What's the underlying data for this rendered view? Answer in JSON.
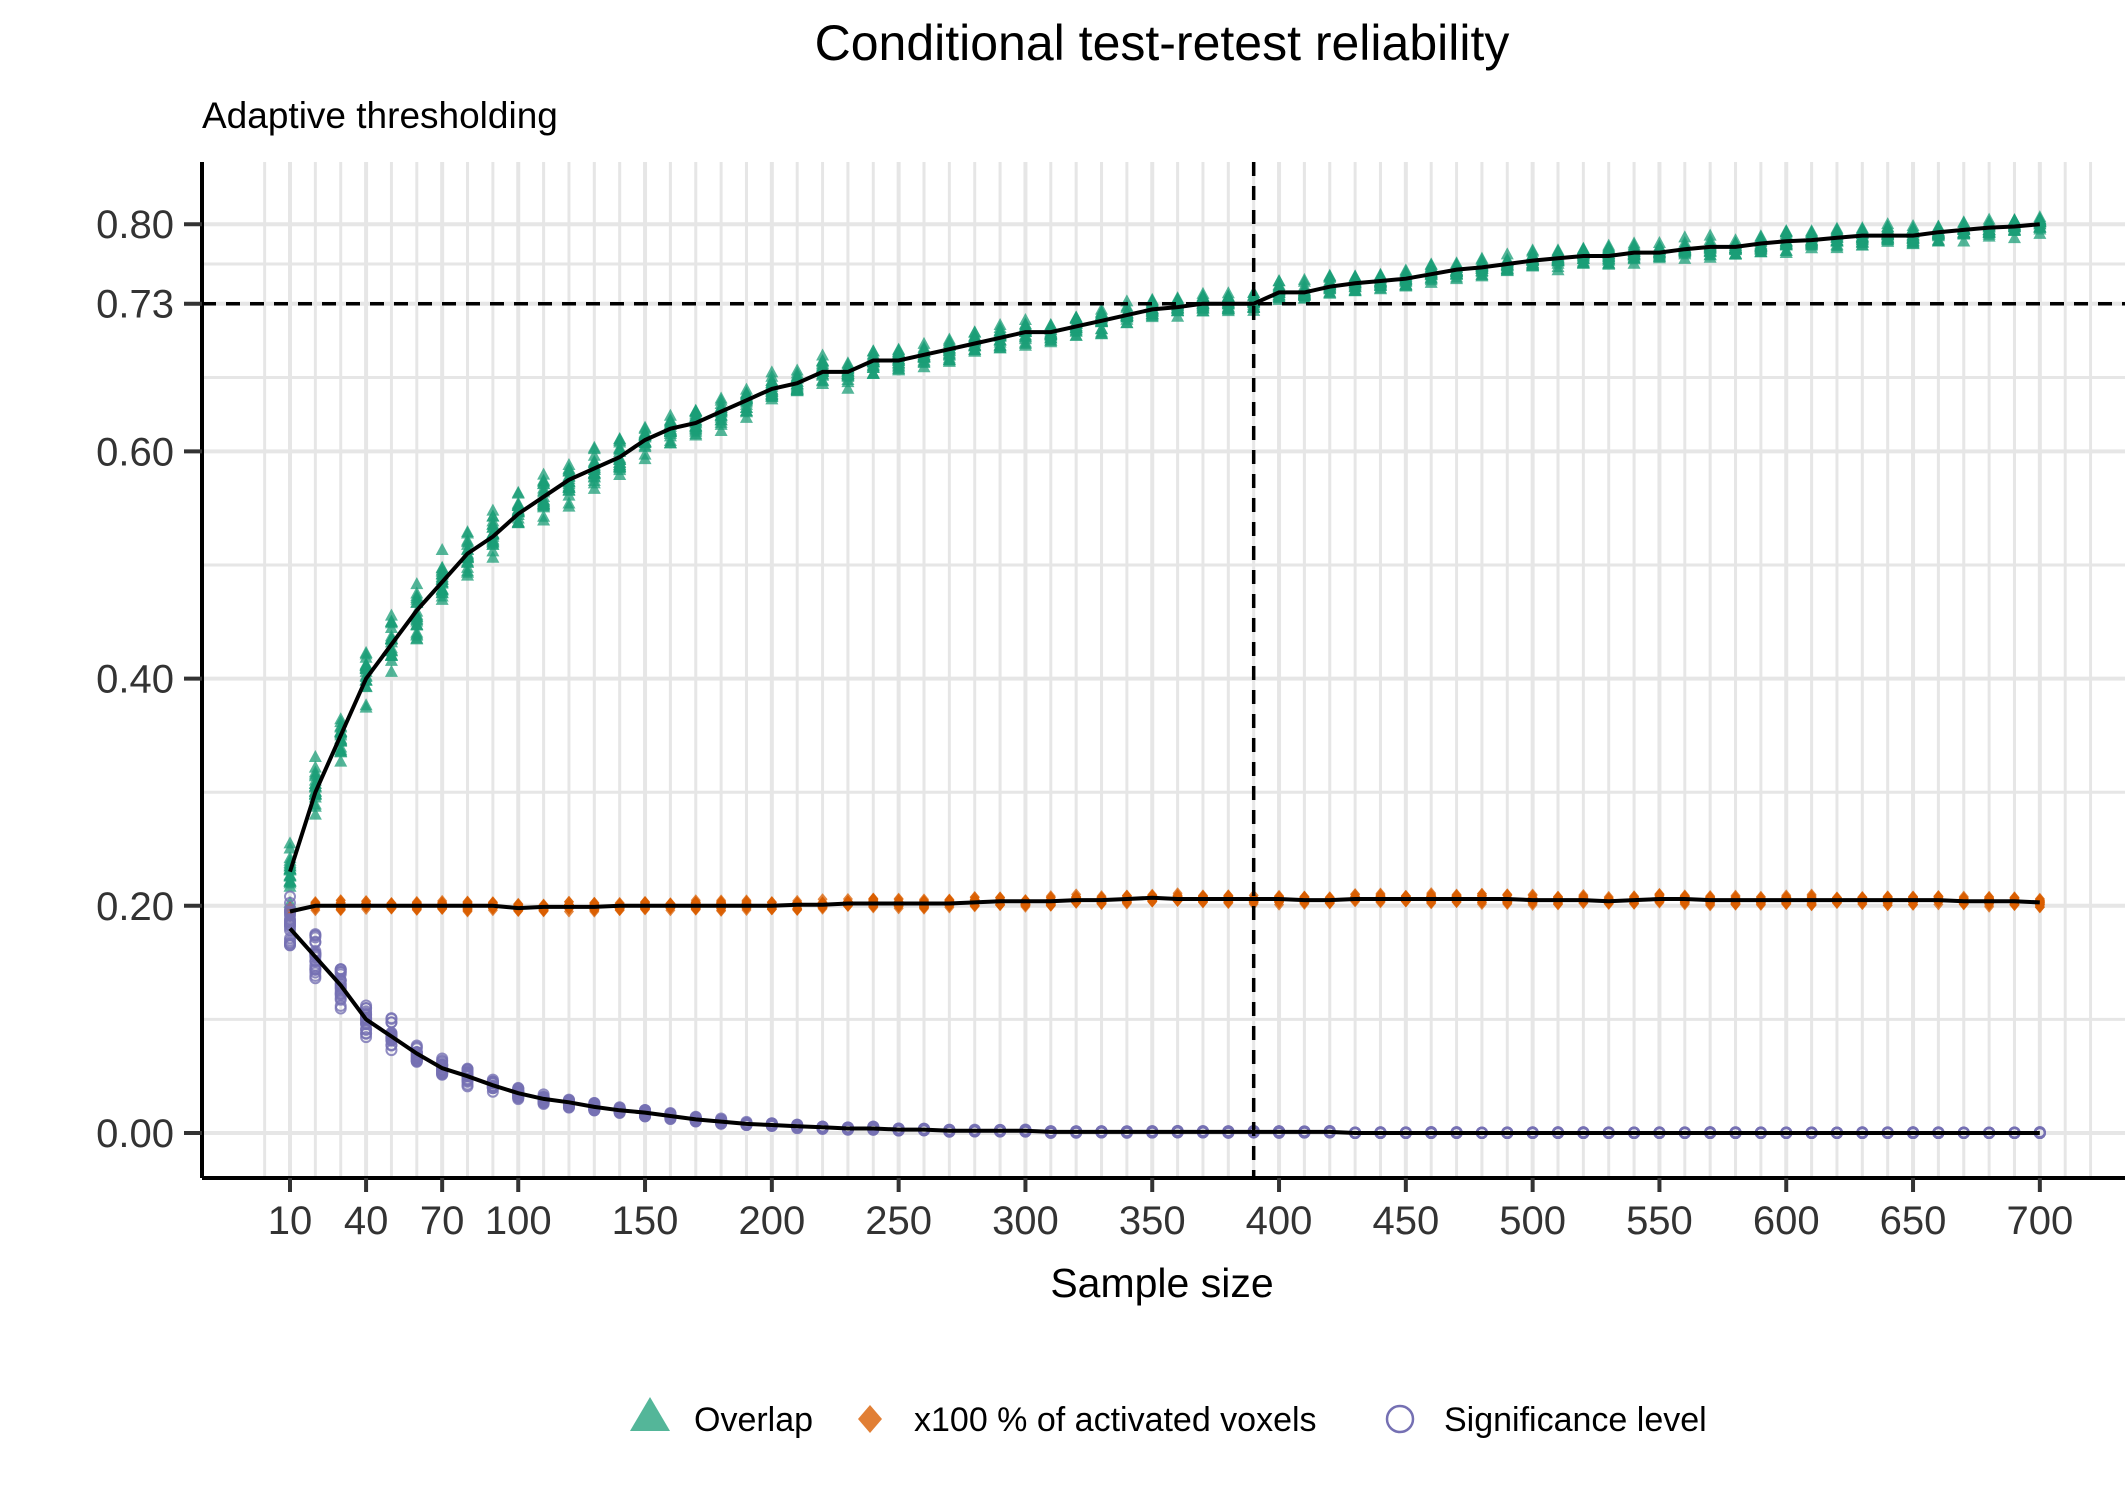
{
  "chart_data": {
    "type": "scatter",
    "title": "Conditional test-retest reliability",
    "subtitle": "Adaptive thresholding",
    "xlabel": "Sample size",
    "ylabel": "",
    "xlim": [
      -10,
      720
    ],
    "ylim": [
      -0.04,
      0.85
    ],
    "x_ticks": [
      10,
      40,
      70,
      100,
      150,
      200,
      250,
      300,
      350,
      400,
      450,
      500,
      550,
      600,
      650,
      700
    ],
    "x_tick_labels": [
      "10",
      "40",
      "70",
      "100",
      "150",
      "200",
      "250",
      "300",
      "350",
      "400",
      "450",
      "500",
      "550",
      "600",
      "650",
      "700"
    ],
    "y_ticks": [
      0.0,
      0.2,
      0.4,
      0.6,
      0.73,
      0.8
    ],
    "y_tick_labels": [
      "0.00",
      "0.20",
      "0.40",
      "0.60",
      "0.73",
      "0.80"
    ],
    "reference_lines": {
      "hline": 0.73,
      "vline": 390
    },
    "grid": true,
    "legend_position": "bottom",
    "series": [
      {
        "name": "Overlap",
        "marker": "triangle",
        "color": "#1b9e77",
        "x": [
          10,
          20,
          30,
          40,
          50,
          60,
          70,
          80,
          90,
          100,
          110,
          120,
          130,
          140,
          150,
          160,
          170,
          180,
          190,
          200,
          210,
          220,
          230,
          240,
          250,
          260,
          270,
          280,
          290,
          300,
          310,
          320,
          330,
          340,
          350,
          360,
          370,
          380,
          390,
          400,
          410,
          420,
          430,
          440,
          450,
          460,
          470,
          480,
          490,
          500,
          510,
          520,
          530,
          540,
          550,
          560,
          570,
          580,
          590,
          600,
          610,
          620,
          630,
          640,
          650,
          660,
          670,
          680,
          690,
          700
        ],
        "mean": [
          0.23,
          0.3,
          0.35,
          0.4,
          0.43,
          0.46,
          0.485,
          0.51,
          0.525,
          0.545,
          0.56,
          0.575,
          0.585,
          0.595,
          0.61,
          0.62,
          0.625,
          0.635,
          0.645,
          0.655,
          0.66,
          0.67,
          0.67,
          0.68,
          0.68,
          0.685,
          0.69,
          0.695,
          0.7,
          0.705,
          0.705,
          0.71,
          0.715,
          0.72,
          0.725,
          0.727,
          0.73,
          0.73,
          0.73,
          0.74,
          0.74,
          0.745,
          0.748,
          0.75,
          0.752,
          0.756,
          0.76,
          0.762,
          0.765,
          0.768,
          0.77,
          0.772,
          0.772,
          0.775,
          0.775,
          0.778,
          0.78,
          0.78,
          0.783,
          0.785,
          0.786,
          0.788,
          0.79,
          0.79,
          0.79,
          0.793,
          0.795,
          0.797,
          0.798,
          0.8
        ],
        "spread": 0.03
      },
      {
        "name": "x100 % of activated voxels",
        "marker": "diamond",
        "color": "#d95f02",
        "x": [
          10,
          20,
          30,
          40,
          50,
          60,
          70,
          80,
          90,
          100,
          110,
          120,
          130,
          140,
          150,
          160,
          170,
          180,
          190,
          200,
          210,
          220,
          230,
          240,
          250,
          260,
          270,
          280,
          290,
          300,
          310,
          320,
          330,
          340,
          350,
          360,
          370,
          380,
          390,
          400,
          410,
          420,
          430,
          440,
          450,
          460,
          470,
          480,
          490,
          500,
          510,
          520,
          530,
          540,
          550,
          560,
          570,
          580,
          590,
          600,
          610,
          620,
          630,
          640,
          650,
          660,
          670,
          680,
          690,
          700
        ],
        "mean": [
          0.195,
          0.2,
          0.2,
          0.2,
          0.2,
          0.2,
          0.2,
          0.2,
          0.2,
          0.198,
          0.199,
          0.199,
          0.199,
          0.2,
          0.2,
          0.2,
          0.2,
          0.2,
          0.2,
          0.2,
          0.201,
          0.201,
          0.202,
          0.202,
          0.202,
          0.202,
          0.202,
          0.203,
          0.204,
          0.204,
          0.204,
          0.205,
          0.205,
          0.206,
          0.207,
          0.206,
          0.206,
          0.206,
          0.206,
          0.206,
          0.205,
          0.205,
          0.206,
          0.206,
          0.206,
          0.206,
          0.206,
          0.206,
          0.206,
          0.205,
          0.205,
          0.205,
          0.204,
          0.205,
          0.206,
          0.206,
          0.205,
          0.205,
          0.205,
          0.205,
          0.205,
          0.205,
          0.205,
          0.205,
          0.205,
          0.205,
          0.204,
          0.204,
          0.204,
          0.203
        ],
        "spread": 0.006
      },
      {
        "name": "Significance level",
        "marker": "circle",
        "color": "#7570b3",
        "x": [
          10,
          20,
          30,
          40,
          50,
          60,
          70,
          80,
          90,
          100,
          110,
          120,
          130,
          140,
          150,
          160,
          170,
          180,
          190,
          200,
          210,
          220,
          230,
          240,
          250,
          260,
          270,
          280,
          290,
          300,
          310,
          320,
          330,
          340,
          350,
          360,
          370,
          380,
          390,
          400,
          410,
          420,
          430,
          440,
          450,
          460,
          470,
          480,
          490,
          500,
          510,
          520,
          530,
          540,
          550,
          560,
          570,
          580,
          590,
          600,
          610,
          620,
          630,
          640,
          650,
          660,
          670,
          680,
          690,
          700
        ],
        "mean": [
          0.18,
          0.155,
          0.13,
          0.1,
          0.085,
          0.07,
          0.057,
          0.05,
          0.042,
          0.035,
          0.03,
          0.027,
          0.023,
          0.02,
          0.018,
          0.015,
          0.012,
          0.01,
          0.008,
          0.007,
          0.006,
          0.005,
          0.004,
          0.004,
          0.003,
          0.003,
          0.002,
          0.002,
          0.002,
          0.002,
          0.001,
          0.001,
          0.001,
          0.001,
          0.001,
          0.001,
          0.001,
          0.001,
          0.001,
          0.001,
          0.001,
          0.001,
          0.0,
          0.0,
          0.0,
          0.0,
          0.0,
          0.0,
          0.0,
          0.0,
          0.0,
          0.0,
          0.0,
          0.0,
          0.0,
          0.0,
          0.0,
          0.0,
          0.0,
          0.0,
          0.0,
          0.0,
          0.0,
          0.0,
          0.0,
          0.0,
          0.0,
          0.0,
          0.0,
          0.0
        ],
        "spread": 0.04
      }
    ]
  }
}
